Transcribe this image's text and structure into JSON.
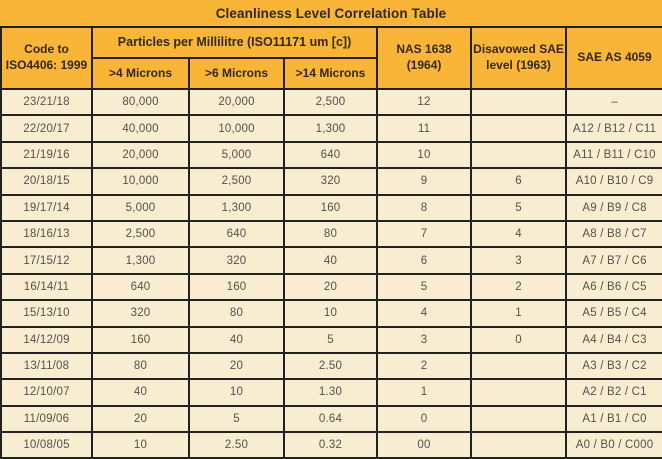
{
  "title": "Cleanliness Level Correlation Table",
  "colors": {
    "header_bg": "#F9B538",
    "row_bg": "#F8EDD1",
    "border": "#23211D",
    "header_text": "#33291B",
    "cell_text": "#56524A"
  },
  "headers": {
    "code": "Code to\nISO4406: 1999",
    "particles_group": "Particles per Millilitre (ISO11171 um [c])",
    "sub": [
      ">4 Microns",
      ">6 Microns",
      ">14 Microns"
    ],
    "nas": "NAS 1638\n(1964)",
    "disavowed": "Disavowed SAE\nlevel (1963)",
    "sae": "SAE AS 4059"
  },
  "rows": [
    [
      "23/21/18",
      "80,000",
      "20,000",
      "2,500",
      "12",
      "",
      "–"
    ],
    [
      "22/20/17",
      "40,000",
      "10,000",
      "1,300",
      "11",
      "",
      "A12 / B12 / C11"
    ],
    [
      "21/19/16",
      "20,000",
      "5,000",
      "640",
      "10",
      "",
      "A11 / B11 / C10"
    ],
    [
      "20/18/15",
      "10,000",
      "2,500",
      "320",
      "9",
      "6",
      "A10 / B10 / C9"
    ],
    [
      "19/17/14",
      "5,000",
      "1,300",
      "160",
      "8",
      "5",
      "A9 / B9 / C8"
    ],
    [
      "18/16/13",
      "2,500",
      "640",
      "80",
      "7",
      "4",
      "A8 / B8 / C7"
    ],
    [
      "17/15/12",
      "1,300",
      "320",
      "40",
      "6",
      "3",
      "A7 / B7 / C6"
    ],
    [
      "16/14/11",
      "640",
      "160",
      "20",
      "5",
      "2",
      "A6 / B6 / C5"
    ],
    [
      "15/13/10",
      "320",
      "80",
      "10",
      "4",
      "1",
      "A5 / B5 / C4"
    ],
    [
      "14/12/09",
      "160",
      "40",
      "5",
      "3",
      "0",
      "A4 / B4 / C3"
    ],
    [
      "13/11/08",
      "80",
      "20",
      "2.50",
      "2",
      "",
      "A3 / B3 / C2"
    ],
    [
      "12/10/07",
      "40",
      "10",
      "1.30",
      "1",
      "",
      "A2 / B2 / C1"
    ],
    [
      "11/09/06",
      "20",
      "5",
      "0.64",
      "0",
      "",
      "A1 / B1 / C0"
    ],
    [
      "10/08/05",
      "10",
      "2.50",
      "0.32",
      "00",
      "",
      "A0 / B0 / C000"
    ]
  ],
  "column_names": [
    "iso-code",
    "particles-4um",
    "particles-6um",
    "particles-14um",
    "nas-1638",
    "disavowed-sae",
    "sae-as4059"
  ]
}
